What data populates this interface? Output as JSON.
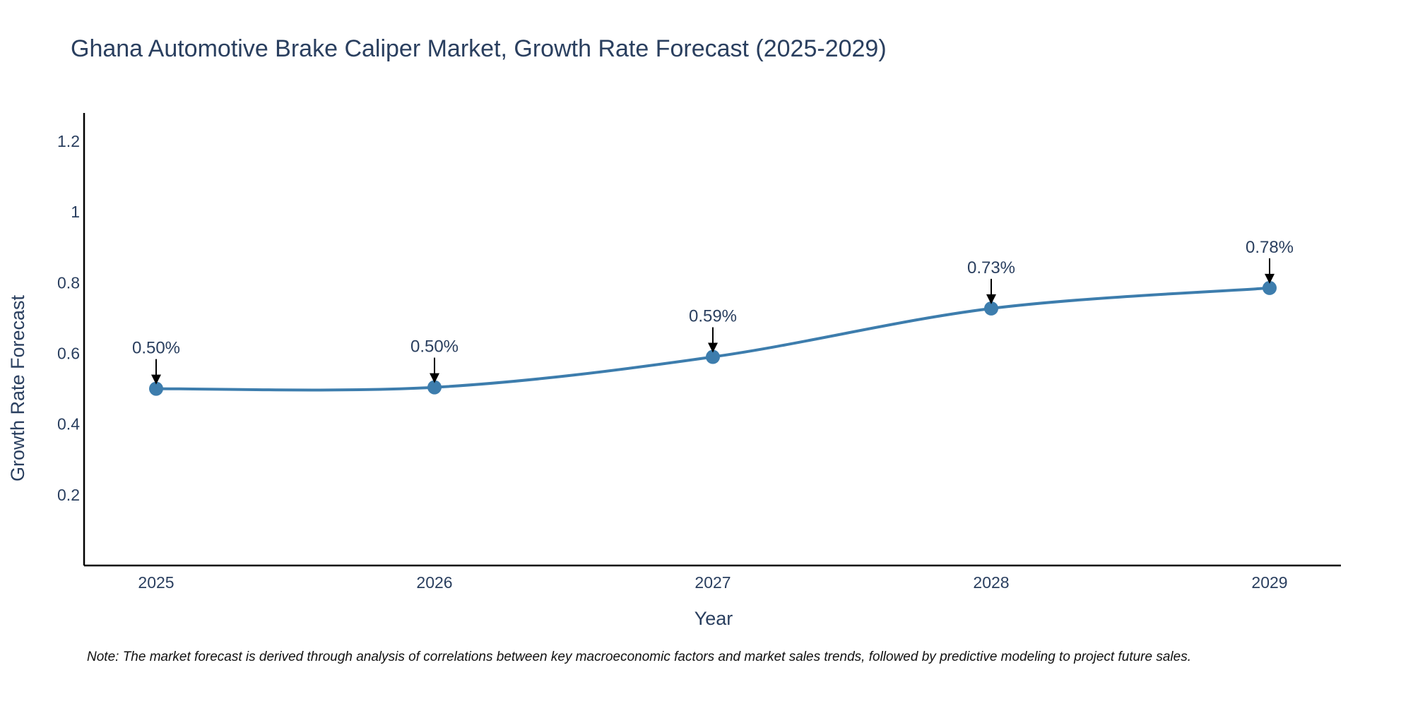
{
  "chart_data": {
    "type": "line",
    "title": "Ghana Automotive Brake Caliper Market, Growth Rate Forecast (2025-2029)",
    "xlabel": "Year",
    "ylabel": "Growth Rate Forecast",
    "categories": [
      "2025",
      "2026",
      "2027",
      "2028",
      "2029"
    ],
    "values": [
      0.5,
      0.504,
      0.59,
      0.727,
      0.785
    ],
    "data_labels": [
      "0.50%",
      "0.50%",
      "0.59%",
      "0.73%",
      "0.78%"
    ],
    "ylim": [
      0,
      1.28
    ],
    "yticks": [
      0.2,
      0.4,
      0.6,
      0.8,
      1.0,
      1.2
    ],
    "ytick_labels": [
      "0.2",
      "0.4",
      "0.6",
      "0.8",
      "1",
      "1.2"
    ],
    "grid": false,
    "colors": {
      "line": "#3d7dad",
      "marker": "#3d7dad",
      "text": "#2a3f5f",
      "axis": "#000000",
      "arrow": "#000000"
    }
  },
  "note": "Note: The market forecast is derived through analysis of correlations between key macroeconomic factors and market sales trends, followed by predictive modeling to project future sales."
}
